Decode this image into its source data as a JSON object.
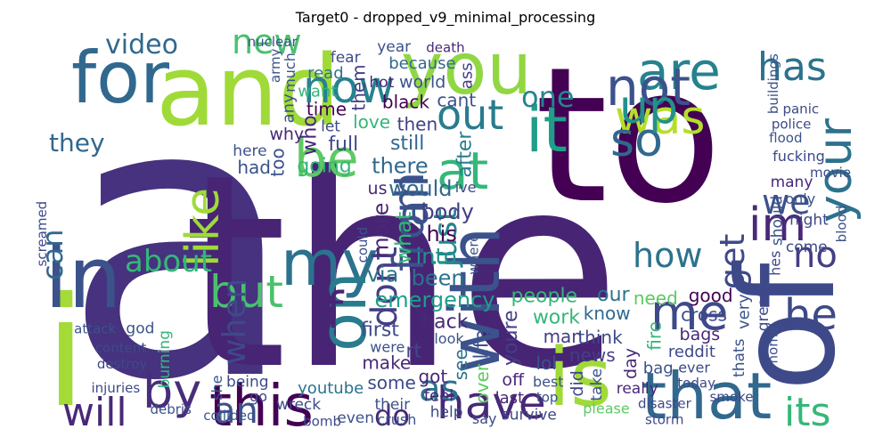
{
  "chart_data": {
    "type": "wordcloud",
    "title": "Target0 - dropped_v9_minimal_processing",
    "colormap": "viridis",
    "background": "#ffffff",
    "words": [
      {
        "text": "a",
        "weight": 1.0,
        "color": "#46327e"
      },
      {
        "text": "the",
        "weight": 0.98,
        "color": "#482475"
      },
      {
        "text": "to",
        "weight": 0.86,
        "color": "#440154"
      },
      {
        "text": "i",
        "weight": 0.78,
        "color": "#a5db36"
      },
      {
        "text": "and",
        "weight": 0.6,
        "color": "#a0da39"
      },
      {
        "text": "of",
        "weight": 0.55,
        "color": "#3e4989"
      },
      {
        "text": "you",
        "weight": 0.5,
        "color": "#90d743"
      },
      {
        "text": "in",
        "weight": 0.5,
        "color": "#3b528b"
      },
      {
        "text": "for",
        "weight": 0.4,
        "color": "#31688e"
      },
      {
        "text": "is",
        "weight": 0.4,
        "color": "#a0da39"
      },
      {
        "text": "that",
        "weight": 0.36,
        "color": "#31688e"
      },
      {
        "text": "my",
        "weight": 0.34,
        "color": "#2c728e"
      },
      {
        "text": "on",
        "weight": 0.34,
        "color": "#287c8e"
      },
      {
        "text": "with",
        "weight": 0.32,
        "color": "#3b528b"
      },
      {
        "text": "it",
        "weight": 0.32,
        "color": "#1f9e89"
      },
      {
        "text": "are",
        "weight": 0.3,
        "color": "#26828e"
      },
      {
        "text": "this",
        "weight": 0.3,
        "color": "#440154"
      },
      {
        "text": "not",
        "weight": 0.3,
        "color": "#3b528b"
      },
      {
        "text": "have",
        "weight": 0.28,
        "color": "#482878"
      },
      {
        "text": "be",
        "weight": 0.28,
        "color": "#5ec962"
      },
      {
        "text": "at",
        "weight": 0.28,
        "color": "#35b779"
      },
      {
        "text": "like",
        "weight": 0.26,
        "color": "#a0da39"
      },
      {
        "text": "was",
        "weight": 0.26,
        "color": "#b5de2b"
      },
      {
        "text": "me",
        "weight": 0.26,
        "color": "#3e4989"
      },
      {
        "text": "by",
        "weight": 0.26,
        "color": "#472d7b"
      },
      {
        "text": "now",
        "weight": 0.24,
        "color": "#26828e"
      },
      {
        "text": "your",
        "weight": 0.24,
        "color": "#2c728e"
      },
      {
        "text": "from",
        "weight": 0.24,
        "color": "#3b528b"
      },
      {
        "text": "so",
        "weight": 0.24,
        "color": "#31688e"
      },
      {
        "text": "but",
        "weight": 0.24,
        "color": "#4ac16d"
      },
      {
        "text": "just",
        "weight": 0.24,
        "color": "#25858e"
      },
      {
        "text": "all",
        "weight": 0.24,
        "color": "#3b528b"
      },
      {
        "text": "dont",
        "weight": 0.22,
        "color": "#433e85"
      },
      {
        "text": "up",
        "weight": 0.22,
        "color": "#21918c"
      },
      {
        "text": "has",
        "weight": 0.22,
        "color": "#2c728e"
      },
      {
        "text": "out",
        "weight": 0.22,
        "color": "#287c8e"
      },
      {
        "text": "an",
        "weight": 0.2,
        "color": "#3b528b"
      },
      {
        "text": "its",
        "weight": 0.2,
        "color": "#35b779"
      },
      {
        "text": "will",
        "weight": 0.2,
        "color": "#482878"
      },
      {
        "text": "no",
        "weight": 0.2,
        "color": "#433e85"
      },
      {
        "text": "when",
        "weight": 0.2,
        "color": "#3e4989"
      },
      {
        "text": "if",
        "weight": 0.2,
        "color": "#482475"
      },
      {
        "text": "as",
        "weight": 0.2,
        "color": "#2c728e"
      },
      {
        "text": "im",
        "weight": 0.2,
        "color": "#482878"
      },
      {
        "text": "he",
        "weight": 0.2,
        "color": "#3e4989"
      },
      {
        "text": "get",
        "weight": 0.18,
        "color": "#3e4989"
      },
      {
        "text": "we",
        "weight": 0.18,
        "color": "#3b528b"
      },
      {
        "text": "do",
        "weight": 0.16,
        "color": "#482878"
      },
      {
        "text": "new",
        "weight": 0.16,
        "color": "#4ac16d"
      },
      {
        "text": "how",
        "weight": 0.16,
        "color": "#2c728e"
      },
      {
        "text": "can",
        "weight": 0.16,
        "color": "#31688e"
      },
      {
        "text": "about",
        "weight": 0.16,
        "color": "#35b779"
      },
      {
        "text": "one",
        "weight": 0.16,
        "color": "#25858e"
      },
      {
        "text": "they",
        "weight": 0.14,
        "color": "#31688e"
      },
      {
        "text": "video",
        "weight": 0.14,
        "color": "#31688e"
      },
      {
        "text": "his",
        "weight": 0.14,
        "color": "#440154"
      },
      {
        "text": "into",
        "weight": 0.14,
        "color": "#21918c"
      },
      {
        "text": "what",
        "weight": 0.14,
        "color": "#35b779"
      },
      {
        "text": "body",
        "weight": 0.14,
        "color": "#433e85"
      },
      {
        "text": "been",
        "weight": 0.14,
        "color": "#2c728e"
      },
      {
        "text": "would",
        "weight": 0.14,
        "color": "#31688e"
      },
      {
        "text": "more",
        "weight": 0.14,
        "color": "#482878"
      },
      {
        "text": "emergency",
        "weight": 0.14,
        "color": "#1f9e89"
      },
      {
        "text": "via",
        "weight": 0.14,
        "color": "#2c728e"
      },
      {
        "text": "there",
        "weight": 0.14,
        "color": "#31688e"
      },
      {
        "text": "after",
        "weight": 0.12,
        "color": "#287c8e"
      },
      {
        "text": "people",
        "weight": 0.12,
        "color": "#35b779"
      },
      {
        "text": "back",
        "weight": 0.12,
        "color": "#482878"
      },
      {
        "text": "going",
        "weight": 0.12,
        "color": "#35b779"
      },
      {
        "text": "youre",
        "weight": 0.12,
        "color": "#433e85"
      },
      {
        "text": "first",
        "weight": 0.12,
        "color": "#3e4989"
      },
      {
        "text": "still",
        "weight": 0.12,
        "color": "#31688e"
      },
      {
        "text": "full",
        "weight": 0.12,
        "color": "#3e4989"
      },
      {
        "text": "life",
        "weight": 0.12,
        "color": "#3b528b"
      },
      {
        "text": "work",
        "weight": 0.12,
        "color": "#35b779"
      },
      {
        "text": "our",
        "weight": 0.12,
        "color": "#2c728e"
      },
      {
        "text": "rt",
        "weight": 0.12,
        "color": "#3e4989"
      },
      {
        "text": "who",
        "weight": 0.12,
        "color": "#482475"
      },
      {
        "text": "love",
        "weight": 0.1,
        "color": "#35b779"
      },
      {
        "text": "need",
        "weight": 0.1,
        "color": "#5ec962"
      },
      {
        "text": "know",
        "weight": 0.1,
        "color": "#31688e"
      },
      {
        "text": "too",
        "weight": 0.1,
        "color": "#3b528b"
      },
      {
        "text": "man",
        "weight": 0.1,
        "color": "#433e85"
      },
      {
        "text": "make",
        "weight": 0.1,
        "color": "#482878"
      },
      {
        "text": "black",
        "weight": 0.1,
        "color": "#440154"
      },
      {
        "text": "fire",
        "weight": 0.1,
        "color": "#35b779"
      },
      {
        "text": "news",
        "weight": 0.1,
        "color": "#433e85"
      },
      {
        "text": "think",
        "weight": 0.1,
        "color": "#3e4989"
      },
      {
        "text": "then",
        "weight": 0.1,
        "color": "#433e85"
      },
      {
        "text": "see",
        "weight": 0.1,
        "color": "#2c728e"
      },
      {
        "text": "lol",
        "weight": 0.1,
        "color": "#3b528b"
      },
      {
        "text": "time",
        "weight": 0.1,
        "color": "#440154"
      },
      {
        "text": "good",
        "weight": 0.1,
        "color": "#440154"
      },
      {
        "text": "over",
        "weight": 0.1,
        "color": "#5ec962"
      },
      {
        "text": "some",
        "weight": 0.1,
        "color": "#3e4989"
      },
      {
        "text": "cant",
        "weight": 0.1,
        "color": "#3b528b"
      },
      {
        "text": "got",
        "weight": 0.1,
        "color": "#482878"
      },
      {
        "text": "them",
        "weight": 0.1,
        "color": "#433e85"
      },
      {
        "text": "cross",
        "weight": 0.1,
        "color": "#3e4989"
      },
      {
        "text": "had",
        "weight": 0.1,
        "color": "#3b528b"
      },
      {
        "text": "world",
        "weight": 0.09,
        "color": "#3b528b"
      },
      {
        "text": "did",
        "weight": 0.09,
        "color": "#3e4989"
      },
      {
        "text": "why",
        "weight": 0.09,
        "color": "#482878"
      },
      {
        "text": "off",
        "weight": 0.09,
        "color": "#482878"
      },
      {
        "text": "bags",
        "weight": 0.09,
        "color": "#482878"
      },
      {
        "text": "day",
        "weight": 0.09,
        "color": "#482878"
      },
      {
        "text": "us",
        "weight": 0.09,
        "color": "#482878"
      },
      {
        "text": "youtube",
        "weight": 0.08,
        "color": "#2c728e"
      },
      {
        "text": "want",
        "weight": 0.08,
        "color": "#35b779"
      },
      {
        "text": "very",
        "weight": 0.08,
        "color": "#3b528b"
      },
      {
        "text": "because",
        "weight": 0.08,
        "color": "#31688e"
      },
      {
        "text": "reddit",
        "weight": 0.08,
        "color": "#3e4989"
      },
      {
        "text": "last",
        "weight": 0.08,
        "color": "#482878"
      },
      {
        "text": "ass",
        "weight": 0.08,
        "color": "#433e85"
      },
      {
        "text": "feel",
        "weight": 0.08,
        "color": "#482878"
      },
      {
        "text": "bag",
        "weight": 0.08,
        "color": "#3b528b"
      },
      {
        "text": "read",
        "weight": 0.08,
        "color": "#2c728e"
      },
      {
        "text": "any",
        "weight": 0.08,
        "color": "#3b528b"
      },
      {
        "text": "hot",
        "weight": 0.07,
        "color": "#482878"
      },
      {
        "text": "let",
        "weight": 0.07,
        "color": "#3e4989"
      },
      {
        "text": "their",
        "weight": 0.07,
        "color": "#3b528b"
      },
      {
        "text": "should",
        "weight": 0.07,
        "color": "#3b528b"
      },
      {
        "text": "really",
        "weight": 0.07,
        "color": "#482878"
      },
      {
        "text": "night",
        "weight": 0.07,
        "color": "#3e4989"
      },
      {
        "text": "help",
        "weight": 0.07,
        "color": "#3e4989"
      },
      {
        "text": "take",
        "weight": 0.07,
        "color": "#3b528b"
      },
      {
        "text": "being",
        "weight": 0.07,
        "color": "#3e4989"
      },
      {
        "text": "many",
        "weight": 0.07,
        "color": "#482878"
      },
      {
        "text": "here",
        "weight": 0.07,
        "color": "#3b528b"
      },
      {
        "text": "burning",
        "weight": 0.07,
        "color": "#35b779"
      },
      {
        "text": "survive",
        "weight": 0.07,
        "color": "#3e4989"
      },
      {
        "text": "wreck",
        "weight": 0.07,
        "color": "#3e4989"
      },
      {
        "text": "god",
        "weight": 0.07,
        "color": "#3b528b"
      },
      {
        "text": "great",
        "weight": 0.07,
        "color": "#3e4989"
      },
      {
        "text": "come",
        "weight": 0.07,
        "color": "#3e4989"
      },
      {
        "text": "even",
        "weight": 0.07,
        "color": "#3b528b"
      },
      {
        "text": "year",
        "weight": 0.07,
        "color": "#3b528b"
      },
      {
        "text": "thats",
        "weight": 0.07,
        "color": "#3b528b"
      },
      {
        "text": "fear",
        "weight": 0.07,
        "color": "#3e4989"
      },
      {
        "text": "fucking",
        "weight": 0.06,
        "color": "#3e4989"
      },
      {
        "text": "only",
        "weight": 0.06,
        "color": "#3b528b"
      },
      {
        "text": "much",
        "weight": 0.06,
        "color": "#3b528b"
      },
      {
        "text": "say",
        "weight": 0.06,
        "color": "#3e4989"
      },
      {
        "text": "best",
        "weight": 0.06,
        "color": "#3b528b"
      },
      {
        "text": "look",
        "weight": 0.06,
        "color": "#3b528b"
      },
      {
        "text": "hes",
        "weight": 0.06,
        "color": "#3e4989"
      },
      {
        "text": "ive",
        "weight": 0.06,
        "color": "#3e4989"
      },
      {
        "text": "were",
        "weight": 0.06,
        "color": "#3b528b"
      },
      {
        "text": "ever",
        "weight": 0.06,
        "color": "#3e4989"
      },
      {
        "text": "she",
        "weight": 0.06,
        "color": "#3b528b"
      },
      {
        "text": "please",
        "weight": 0.06,
        "color": "#5ec962"
      },
      {
        "text": "go",
        "weight": 0.06,
        "color": "#3e4989"
      },
      {
        "text": "crush",
        "weight": 0.06,
        "color": "#3b528b"
      },
      {
        "text": "screamed",
        "weight": 0.05,
        "color": "#3e4989"
      },
      {
        "text": "collided",
        "weight": 0.05,
        "color": "#3b528b"
      },
      {
        "text": "death",
        "weight": 0.05,
        "color": "#482878"
      },
      {
        "text": "today",
        "weight": 0.05,
        "color": "#3e4989"
      },
      {
        "text": "could",
        "weight": 0.05,
        "color": "#3b528b"
      },
      {
        "text": "content",
        "weight": 0.05,
        "color": "#3e4989"
      },
      {
        "text": "top",
        "weight": 0.05,
        "color": "#3b528b"
      },
      {
        "text": "movie",
        "weight": 0.05,
        "color": "#3e4989"
      },
      {
        "text": "where",
        "weight": 0.05,
        "color": "#3b528b"
      },
      {
        "text": "disaster",
        "weight": 0.05,
        "color": "#3e4989"
      },
      {
        "text": "attack",
        "weight": 0.05,
        "color": "#3b528b"
      },
      {
        "text": "bomb",
        "weight": 0.05,
        "color": "#3e4989"
      },
      {
        "text": "army",
        "weight": 0.05,
        "color": "#3b528b"
      },
      {
        "text": "police",
        "weight": 0.05,
        "color": "#3e4989"
      },
      {
        "text": "nuclear",
        "weight": 0.05,
        "color": "#3b528b"
      },
      {
        "text": "destroy",
        "weight": 0.05,
        "color": "#3e4989"
      },
      {
        "text": "blood",
        "weight": 0.05,
        "color": "#3b528b"
      },
      {
        "text": "storm",
        "weight": 0.05,
        "color": "#3e4989"
      },
      {
        "text": "flood",
        "weight": 0.05,
        "color": "#3b528b"
      },
      {
        "text": "injuries",
        "weight": 0.05,
        "color": "#3e4989"
      },
      {
        "text": "buildings",
        "weight": 0.05,
        "color": "#3b528b"
      },
      {
        "text": "smoke",
        "weight": 0.05,
        "color": "#3e4989"
      },
      {
        "text": "debris",
        "weight": 0.05,
        "color": "#3b528b"
      },
      {
        "text": "panic",
        "weight": 0.05,
        "color": "#3e4989"
      },
      {
        "text": "home",
        "weight": 0.05,
        "color": "#3b528b"
      }
    ]
  }
}
